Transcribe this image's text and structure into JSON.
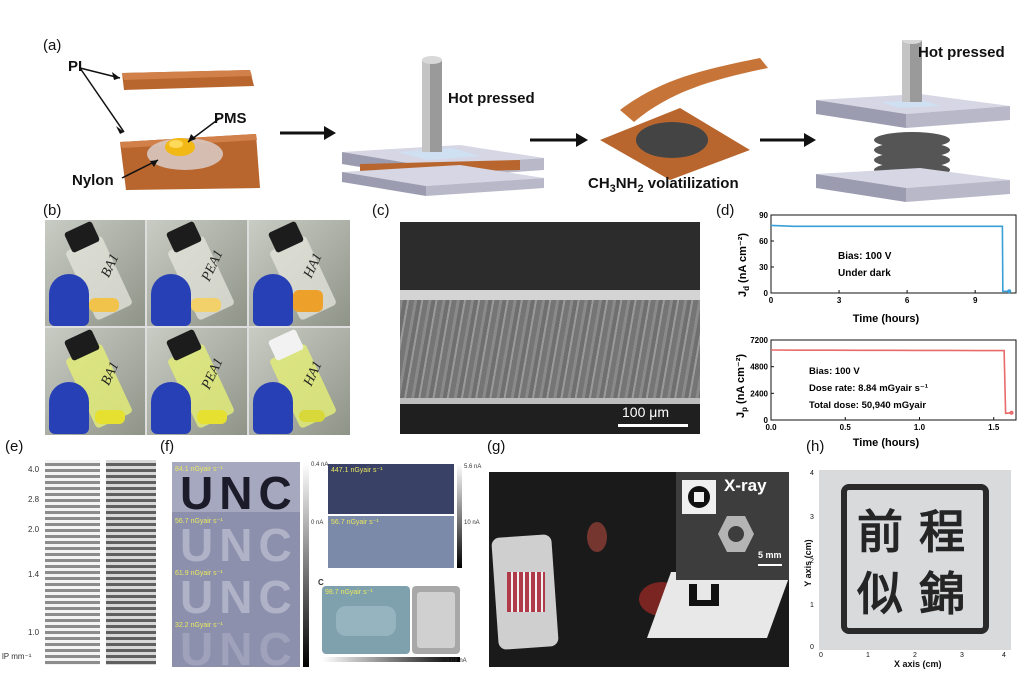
{
  "panel_labels": {
    "a": "(a)",
    "b": "(b)",
    "c": "(c)",
    "d": "(d)",
    "e": "(e)",
    "f": "(f)",
    "g": "(g)",
    "h": "(h)"
  },
  "panel_a": {
    "pi_label": "PI",
    "pms_label": "PMS",
    "nylon_label": "Nylon",
    "hot_pressed_1": "Hot pressed",
    "volatilization_prefix": "CH",
    "volatilization_sub1": "3",
    "volatilization_mid": "NH",
    "volatilization_sub2": "2",
    "volatilization_suffix": " volatilization",
    "hot_pressed_2": "Hot pressed"
  },
  "panel_b": {
    "vial_labels_top": [
      "BA1",
      "PEA1",
      "HA1"
    ],
    "vial_labels_bottom": [
      "BA1",
      "PEA1",
      "HA1"
    ]
  },
  "panel_c": {
    "scale_bar": "100 μm"
  },
  "panel_e": {
    "ticks": [
      "4.0",
      "2.8",
      "2.0",
      "1.4",
      "1.0"
    ],
    "unit": "lP mm⁻¹"
  },
  "panel_f": {
    "letters": [
      "U",
      "N",
      "C"
    ],
    "left_labels": [
      "84.1 nGyair s⁻¹",
      "56.7 nGyair s⁻¹",
      "61.9 nGyair s⁻¹",
      "32.2 nGyair s⁻¹"
    ],
    "right_labels": [
      "447.1 nGyair s⁻¹",
      "56.7 nGyair s⁻¹",
      "98.7 nGyair s⁻¹"
    ],
    "colorbar_labels": [
      "0.4 nA",
      "0 nA",
      "5.6 nA",
      "10 nA",
      "0.08 nA"
    ],
    "sub_label": "C"
  },
  "panel_g": {
    "xray_label": "X-ray",
    "scale_bar": "5 mm"
  },
  "panel_h": {
    "chars": [
      "程",
      "前",
      "錦",
      "似"
    ],
    "xlabel": "X axis (cm)",
    "ylabel": "Y axis (cm)",
    "xticks": [
      "0",
      "1",
      "2",
      "3",
      "4"
    ],
    "yticks": [
      "0",
      "1",
      "2",
      "3",
      "4"
    ]
  },
  "chart_data": [
    {
      "type": "line",
      "panel": "d-top",
      "xlabel": "Time (hours)",
      "ylabel_main": "J",
      "ylabel_sub": "d",
      "ylabel_unit": " (nA cm⁻²)",
      "xlim": [
        0,
        10.8
      ],
      "ylim": [
        0,
        90
      ],
      "xticks": [
        0,
        3,
        6,
        9
      ],
      "yticks": [
        0,
        30,
        60,
        90
      ],
      "annotations": [
        "Bias: 100 V",
        "Under dark"
      ],
      "series": [
        {
          "x": [
            0,
            1,
            2,
            3,
            4,
            5,
            6,
            7,
            8,
            9,
            10.2,
            10.22,
            10.5
          ],
          "values": [
            78,
            77,
            77,
            77,
            77,
            77,
            77,
            77,
            77,
            77,
            77,
            2,
            2
          ]
        }
      ],
      "color": "#3a9fd6"
    },
    {
      "type": "line",
      "panel": "d-bottom",
      "xlabel": "Time (hours)",
      "ylabel_main": "J",
      "ylabel_sub": "p",
      "ylabel_unit": " (nA cm⁻²)",
      "xlim": [
        0,
        1.65
      ],
      "ylim": [
        0,
        7200
      ],
      "xticks": [
        0.0,
        0.5,
        1.0,
        1.5
      ],
      "yticks": [
        0,
        2400,
        4800,
        7200
      ],
      "annotations": [
        "Bias: 100 V",
        "Dose rate: 8.84 mGyair s⁻¹",
        "Total dose: 50,940 mGyair"
      ],
      "series": [
        {
          "x": [
            0,
            0.2,
            0.4,
            0.6,
            0.8,
            1.0,
            1.2,
            1.4,
            1.57,
            1.58,
            1.62
          ],
          "values": [
            6300,
            6280,
            6280,
            6270,
            6270,
            6260,
            6260,
            6250,
            6250,
            600,
            650
          ]
        }
      ],
      "color": "#e86a6a"
    }
  ]
}
